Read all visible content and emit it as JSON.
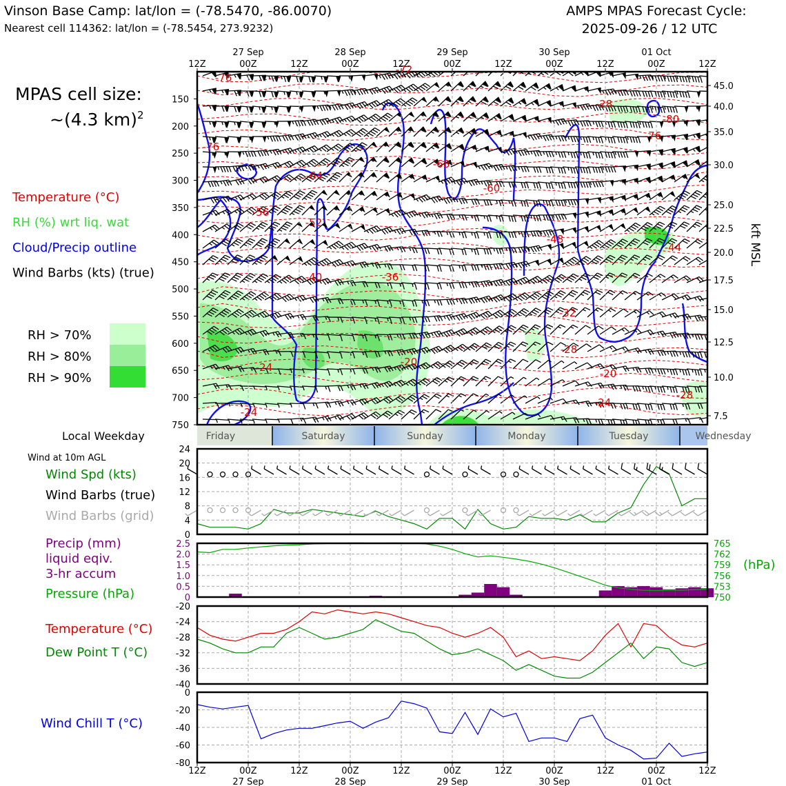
{
  "header": {
    "title_left": "Vinson Base Camp: lat/lon = (-78.5470, -86.0070)",
    "subtitle_left": "Nearest cell 114362: lat/lon = (-78.5454, 273.9232)",
    "title_right_1": "AMPS MPAS Forecast Cycle:",
    "title_right_2": "2025-09-26 / 12 UTC"
  },
  "time_axis": {
    "tick_hours": [
      "12Z",
      "00Z",
      "12Z",
      "00Z",
      "12Z",
      "00Z",
      "12Z",
      "00Z",
      "12Z",
      "00Z",
      "12Z"
    ],
    "date_labels": [
      "27 Sep",
      "28 Sep",
      "29 Sep",
      "30 Sep",
      "01 Oct"
    ]
  },
  "profile": {
    "cell_size_label": "MPAS cell size:",
    "cell_size_value": "~(4.3 km)",
    "cell_size_exp": "2",
    "legend": [
      {
        "text": "Temperature (°C)",
        "color": "#e00000"
      },
      {
        "text": "RH (%) wrt liq. wat",
        "color": "#33dd33"
      },
      {
        "text": "Cloud/Precip outline",
        "color": "#0000ee"
      },
      {
        "text": "Wind Barbs (kts) (true)",
        "color": "#000000"
      }
    ],
    "rh_legend": [
      {
        "text": "RH > 70%",
        "color": "#ccffcc"
      },
      {
        "text": "RH > 80%",
        "color": "#99ee99"
      },
      {
        "text": "RH > 90%",
        "color": "#33dd33"
      }
    ],
    "pressure_ticks": [
      150,
      200,
      250,
      300,
      350,
      400,
      450,
      500,
      550,
      600,
      650,
      700,
      750
    ],
    "kft_ticks": [
      "45.0",
      "40.0",
      "35.0",
      "30.0",
      "25.0",
      "22.5",
      "20.0",
      "17.5",
      "15.0",
      "12.5",
      "10.0",
      "7.5"
    ],
    "right_axis_label": "kft MSL",
    "temp_labels": [
      "-76",
      "-76",
      "-68",
      "-64",
      "-60",
      "-56",
      "-52",
      "-48",
      "-44",
      "-40",
      "-36",
      "-32",
      "-28",
      "-24",
      "-24",
      "-20",
      "-20",
      "-24",
      "-28",
      "-28",
      "-80",
      "-76",
      "-72"
    ]
  },
  "weekday": {
    "label": "Local Weekday",
    "days": [
      "Friday",
      "Saturday",
      "Sunday",
      "Monday",
      "Tuesday",
      "Wednesday"
    ]
  },
  "wind_panel": {
    "title": "Wind at 10m AGL",
    "legend": [
      {
        "text": "Wind Spd (kts)",
        "color": "#008800"
      },
      {
        "text": "Wind Barbs (true)",
        "color": "#000000"
      },
      {
        "text": "Wind Barbs (grid)",
        "color": "#aaaaaa"
      }
    ],
    "y_ticks": [
      "0",
      "4",
      "8",
      "12",
      "16",
      "20",
      "24"
    ]
  },
  "precip_panel": {
    "legend": [
      {
        "text": "Precip (mm)",
        "color": "#800080"
      },
      {
        "text": "liquid eqiv.",
        "color": "#800080"
      },
      {
        "text": "3-hr accum",
        "color": "#800080"
      },
      {
        "text": "Pressure (hPa)",
        "color": "#00aa00"
      }
    ],
    "left_ticks": [
      "0",
      "0.5",
      "1.0",
      "1.5",
      "2.0",
      "2.5"
    ],
    "right_ticks": [
      "750",
      "753",
      "756",
      "759",
      "762",
      "765"
    ],
    "right_unit": "(hPa)"
  },
  "temp_panel": {
    "legend": [
      {
        "text": "Temperature (°C)",
        "color": "#e00000"
      },
      {
        "text": "Dew Point T (°C)",
        "color": "#008800"
      }
    ],
    "y_ticks": [
      "-40",
      "-36",
      "-32",
      "-28",
      "-24",
      "-20"
    ]
  },
  "chill_panel": {
    "legend": [
      {
        "text": "Wind Chill T (°C)",
        "color": "#0000dd"
      }
    ],
    "y_ticks": [
      "-80",
      "-60",
      "-40",
      "-20",
      "0"
    ]
  },
  "chart_data": [
    {
      "type": "line",
      "title": "Wind at 10m AGL",
      "ylabel": "Wind Spd (kts)",
      "ylim": [
        0,
        24
      ],
      "x_hours": [
        0,
        3,
        6,
        9,
        12,
        15,
        18,
        21,
        24,
        27,
        30,
        33,
        36,
        39,
        42,
        45,
        48,
        51,
        54,
        57,
        60,
        63,
        66,
        69,
        72,
        75,
        78,
        81,
        84,
        87,
        90,
        93,
        96,
        99,
        102,
        105,
        108,
        111,
        114,
        117,
        120
      ],
      "series": [
        {
          "name": "Wind Spd (kts)",
          "values": [
            3,
            2,
            2,
            2,
            1.5,
            3,
            7,
            6,
            6,
            7,
            6.5,
            6,
            5.5,
            5,
            6.5,
            5,
            4,
            3,
            1.5,
            4.5,
            4.5,
            1.5,
            7,
            3,
            1.5,
            2,
            5,
            4.5,
            4.5,
            4,
            5.5,
            3.5,
            3.5,
            6,
            7.5,
            14,
            19,
            17,
            8,
            10,
            10
          ]
        }
      ]
    },
    {
      "type": "bar",
      "title": "Precip (mm) liquid eqiv. 3-hr accum",
      "ylim": [
        0,
        2.5
      ],
      "x_hours": [
        0,
        3,
        6,
        9,
        12,
        15,
        18,
        21,
        24,
        27,
        30,
        33,
        36,
        39,
        42,
        45,
        48,
        51,
        54,
        57,
        60,
        63,
        66,
        69,
        72,
        75,
        78,
        81,
        84,
        87,
        90,
        93,
        96,
        99,
        102,
        105,
        108,
        111,
        114,
        117,
        120
      ],
      "values": [
        0,
        0,
        0,
        0.15,
        0,
        0,
        0,
        0,
        0,
        0,
        0,
        0,
        0,
        0,
        0.05,
        0,
        0,
        0,
        0,
        0,
        0,
        0.1,
        0.2,
        0.6,
        0.45,
        0.1,
        0,
        0,
        0,
        0,
        0,
        0,
        0.3,
        0.5,
        0.45,
        0.5,
        0.45,
        0.35,
        0.4,
        0.45,
        0.4
      ]
    },
    {
      "type": "line",
      "title": "Pressure (hPa)",
      "ylim": [
        750,
        765
      ],
      "x_hours": [
        0,
        3,
        6,
        9,
        12,
        15,
        18,
        21,
        24,
        27,
        30,
        33,
        36,
        39,
        42,
        45,
        48,
        51,
        54,
        57,
        60,
        63,
        66,
        69,
        72,
        75,
        78,
        81,
        84,
        87,
        90,
        93,
        96,
        99,
        102,
        105,
        108,
        111,
        114,
        117,
        120
      ],
      "series": [
        {
          "name": "Pressure (hPa)",
          "values": [
            762.6,
            762.4,
            763.3,
            763.3,
            763.7,
            764.0,
            764.3,
            764.5,
            764.6,
            764.8,
            764.9,
            765.0,
            765.1,
            765.1,
            765.0,
            765.1,
            765.1,
            765.0,
            764.8,
            764.2,
            763.3,
            762.1,
            761.2,
            761.5,
            761.1,
            760.6,
            760.0,
            759.2,
            758.2,
            757.0,
            755.8,
            754.6,
            753.3,
            752.6,
            752.2,
            751.9,
            751.8,
            751.9,
            751.9,
            752.1,
            752.2
          ]
        }
      ]
    },
    {
      "type": "line",
      "title": "Temperature / Dew Point",
      "ylim": [
        -40,
        -20
      ],
      "x_hours": [
        0,
        3,
        6,
        9,
        12,
        15,
        18,
        21,
        24,
        27,
        30,
        33,
        36,
        39,
        42,
        45,
        48,
        51,
        54,
        57,
        60,
        63,
        66,
        69,
        72,
        75,
        78,
        81,
        84,
        87,
        90,
        93,
        96,
        99,
        102,
        105,
        108,
        111,
        114,
        117,
        120
      ],
      "series": [
        {
          "name": "Temperature (°C)",
          "values": [
            -25.5,
            -27.5,
            -28.5,
            -29,
            -28,
            -27,
            -27,
            -26,
            -24,
            -21.5,
            -22,
            -21,
            -21.5,
            -22,
            -21.5,
            -22,
            -23,
            -24,
            -25,
            -25.5,
            -27,
            -28,
            -27,
            -25.5,
            -28,
            -33,
            -31.5,
            -33.5,
            -33,
            -33.5,
            -34,
            -31.5,
            -27.5,
            -24.5,
            -30.5,
            -24.5,
            -25,
            -28,
            -30,
            -30.5,
            -29.5
          ]
        },
        {
          "name": "Dew Point T (°C)",
          "values": [
            -28.5,
            -29.5,
            -31,
            -32,
            -32,
            -30.5,
            -30.5,
            -27,
            -25.5,
            -27,
            -28.5,
            -28,
            -27,
            -26,
            -23.5,
            -25,
            -26.5,
            -27,
            -29,
            -31,
            -32.5,
            -32,
            -31,
            -32.5,
            -34,
            -36.5,
            -35,
            -36.5,
            -38,
            -38.5,
            -38.5,
            -37,
            -34.5,
            -32,
            -29.5,
            -33.5,
            -30.5,
            -31,
            -34.5,
            -35.5,
            -34.5
          ]
        }
      ]
    },
    {
      "type": "line",
      "title": "Wind Chill T (°C)",
      "ylim": [
        -80,
        0
      ],
      "x_hours": [
        0,
        3,
        6,
        9,
        12,
        15,
        18,
        21,
        24,
        27,
        30,
        33,
        36,
        39,
        42,
        45,
        48,
        51,
        54,
        57,
        60,
        63,
        66,
        69,
        72,
        75,
        78,
        81,
        84,
        87,
        90,
        93,
        96,
        99,
        102,
        105,
        108,
        111,
        114,
        117,
        120
      ],
      "series": [
        {
          "name": "Wind Chill T (°C)",
          "values": [
            -14,
            -17,
            -19,
            -17,
            -15,
            -53,
            -47,
            -43,
            -41,
            -41,
            -38,
            -35,
            -33,
            -41,
            -34,
            -29,
            -10,
            -13,
            -18,
            -45,
            -47,
            -23,
            -48,
            -19,
            -28,
            -24,
            -56,
            -52,
            -52,
            -56,
            -30,
            -26,
            -52,
            -60,
            -66,
            -76,
            -75,
            -58,
            -73,
            -70,
            -68
          ]
        }
      ]
    }
  ]
}
